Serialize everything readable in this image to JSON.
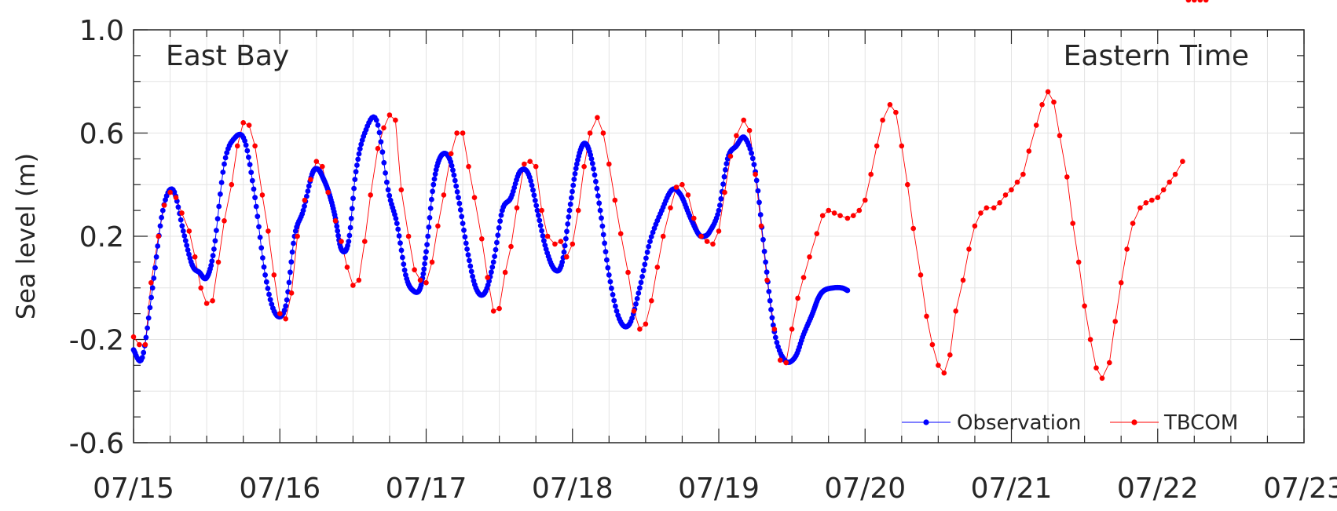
{
  "chart_data": {
    "type": "line",
    "title": "",
    "xlabel": "",
    "ylabel": "Sea level (m)",
    "ylim": [
      -0.6,
      1.0
    ],
    "xlim": [
      "07/15",
      "07/23"
    ],
    "x_ticks": [
      "07/15",
      "07/16",
      "07/17",
      "07/18",
      "07/19",
      "07/20",
      "07/21",
      "07/22",
      "07/23"
    ],
    "y_ticks": [
      "-0.6",
      "-0.2",
      "0.2",
      "0.6",
      "1.0"
    ],
    "grid": true,
    "legend_position": "bottom-right",
    "annotations": {
      "top_left": "East Bay",
      "top_right": "Eastern Time"
    },
    "colors": {
      "Observation": "#0000ff",
      "TBCOM": "#ff0000"
    },
    "series": [
      {
        "name": "Observation",
        "x_dates_days": [
          0.0,
          0.06,
          0.13,
          0.2,
          0.27,
          0.34,
          0.4,
          0.45,
          0.5,
          0.55,
          0.62,
          0.69,
          0.76,
          0.83,
          0.9,
          0.97,
          1.04,
          1.1,
          1.16,
          1.22,
          1.26,
          1.3,
          1.34,
          1.38,
          1.42,
          1.47,
          1.52,
          1.58,
          1.66,
          1.74,
          1.8,
          1.86,
          1.91,
          1.96,
          2.0,
          2.05,
          2.1,
          2.16,
          2.22,
          2.28,
          2.34,
          2.4,
          2.46,
          2.52,
          2.58,
          2.64,
          2.7,
          2.76,
          2.82,
          2.88,
          2.93,
          2.98,
          3.03,
          3.08,
          3.13,
          3.19,
          3.25,
          3.32,
          3.39,
          3.46,
          3.53,
          3.61,
          3.68,
          3.74,
          3.8,
          3.86,
          3.9,
          3.94,
          4.0,
          4.06,
          4.12,
          4.18,
          4.25,
          4.32,
          4.38,
          4.45,
          4.52,
          4.58,
          4.64,
          4.68,
          4.72,
          4.78,
          4.84,
          4.88
        ],
        "values": [
          -0.24,
          -0.27,
          0.0,
          0.3,
          0.38,
          0.22,
          0.09,
          0.06,
          0.04,
          0.15,
          0.48,
          0.58,
          0.57,
          0.35,
          0.05,
          -0.1,
          -0.07,
          0.2,
          0.3,
          0.44,
          0.46,
          0.42,
          0.36,
          0.27,
          0.15,
          0.18,
          0.45,
          0.6,
          0.65,
          0.38,
          0.25,
          0.05,
          -0.01,
          0.0,
          0.14,
          0.4,
          0.51,
          0.5,
          0.35,
          0.15,
          0.0,
          -0.02,
          0.1,
          0.3,
          0.35,
          0.45,
          0.44,
          0.3,
          0.15,
          0.07,
          0.1,
          0.3,
          0.48,
          0.56,
          0.5,
          0.3,
          0.05,
          -0.12,
          -0.14,
          0.0,
          0.18,
          0.3,
          0.38,
          0.36,
          0.28,
          0.21,
          0.2,
          0.22,
          0.3,
          0.5,
          0.55,
          0.58,
          0.45,
          0.1,
          -0.17,
          -0.28,
          -0.27,
          -0.18,
          -0.1,
          -0.04,
          -0.01,
          0.0,
          0.0,
          -0.01
        ]
      },
      {
        "name": "TBCOM",
        "x_dates_days": [
          0.0,
          0.04,
          0.08,
          0.12,
          0.17,
          0.21,
          0.25,
          0.29,
          0.33,
          0.38,
          0.42,
          0.46,
          0.5,
          0.54,
          0.58,
          0.62,
          0.67,
          0.71,
          0.75,
          0.79,
          0.83,
          0.88,
          0.92,
          0.96,
          1.0,
          1.04,
          1.08,
          1.12,
          1.17,
          1.21,
          1.25,
          1.29,
          1.33,
          1.38,
          1.42,
          1.46,
          1.5,
          1.54,
          1.58,
          1.62,
          1.67,
          1.71,
          1.75,
          1.79,
          1.83,
          1.88,
          1.92,
          1.96,
          2.0,
          2.04,
          2.08,
          2.12,
          2.17,
          2.21,
          2.25,
          2.29,
          2.33,
          2.38,
          2.42,
          2.46,
          2.5,
          2.54,
          2.58,
          2.62,
          2.67,
          2.71,
          2.75,
          2.79,
          2.83,
          2.88,
          2.92,
          2.96,
          3.0,
          3.04,
          3.08,
          3.12,
          3.17,
          3.21,
          3.25,
          3.29,
          3.33,
          3.38,
          3.42,
          3.46,
          3.5,
          3.54,
          3.58,
          3.62,
          3.67,
          3.71,
          3.75,
          3.79,
          3.83,
          3.88,
          3.92,
          3.96,
          4.0,
          4.04,
          4.08,
          4.12,
          4.17,
          4.21,
          4.25,
          4.29,
          4.33,
          4.38,
          4.42,
          4.46,
          4.5,
          4.54,
          4.58,
          4.62,
          4.67,
          4.71,
          4.75,
          4.79,
          4.83,
          4.88,
          4.92,
          4.96,
          5.0,
          5.04,
          5.08,
          5.12,
          5.17,
          5.21,
          5.25,
          5.29,
          5.33,
          5.38,
          5.42,
          5.46,
          5.5,
          5.54,
          5.58,
          5.62,
          5.67,
          5.71,
          5.75,
          5.79,
          5.83,
          5.88,
          5.92,
          5.96,
          6.0,
          6.04,
          6.08,
          6.12,
          6.17,
          6.21,
          6.25,
          6.29,
          6.33,
          6.38,
          6.42,
          6.46,
          6.5,
          6.54,
          6.58,
          6.62,
          6.67,
          6.71,
          6.75,
          6.79,
          6.83,
          6.88,
          6.92,
          6.96,
          7.0,
          7.04,
          7.08,
          7.12,
          7.17,
          7.21,
          7.25,
          7.29,
          7.33
        ],
        "values": [
          -0.19,
          -0.22,
          -0.22,
          0.02,
          0.2,
          0.32,
          0.37,
          0.35,
          0.29,
          0.22,
          0.12,
          0.0,
          -0.06,
          -0.05,
          0.1,
          0.26,
          0.4,
          0.55,
          0.64,
          0.63,
          0.55,
          0.36,
          0.22,
          0.05,
          -0.1,
          -0.12,
          -0.02,
          0.2,
          0.34,
          0.42,
          0.49,
          0.47,
          0.37,
          0.26,
          0.18,
          0.08,
          0.01,
          0.03,
          0.18,
          0.36,
          0.54,
          0.62,
          0.67,
          0.65,
          0.38,
          0.2,
          0.07,
          0.03,
          0.02,
          0.1,
          0.24,
          0.36,
          0.52,
          0.6,
          0.6,
          0.47,
          0.35,
          0.19,
          0.04,
          -0.09,
          -0.08,
          0.06,
          0.16,
          0.31,
          0.48,
          0.49,
          0.47,
          0.3,
          0.2,
          0.17,
          0.18,
          0.12,
          0.17,
          0.3,
          0.47,
          0.6,
          0.66,
          0.6,
          0.48,
          0.34,
          0.21,
          0.06,
          -0.09,
          -0.16,
          -0.14,
          -0.05,
          0.08,
          0.2,
          0.31,
          0.39,
          0.4,
          0.36,
          0.27,
          0.2,
          0.18,
          0.17,
          0.22,
          0.37,
          0.51,
          0.59,
          0.65,
          0.61,
          0.44,
          0.24,
          0.03,
          -0.16,
          -0.28,
          -0.29,
          -0.16,
          -0.04,
          0.04,
          0.12,
          0.21,
          0.28,
          0.3,
          0.29,
          0.28,
          0.27,
          0.28,
          0.3,
          0.34,
          0.44,
          0.55,
          0.65,
          0.71,
          0.68,
          0.55,
          0.4,
          0.23,
          0.05,
          -0.11,
          -0.22,
          -0.3,
          -0.33,
          -0.26,
          -0.09,
          0.03,
          0.15,
          0.24,
          0.29,
          0.31,
          0.31,
          0.33,
          0.36,
          0.38,
          0.41,
          0.44,
          0.53,
          0.63,
          0.71,
          0.76,
          0.72,
          0.59,
          0.43,
          0.25,
          0.1,
          -0.07,
          -0.2,
          -0.31,
          -0.35,
          -0.29,
          -0.13,
          0.02,
          0.15,
          0.25,
          0.31,
          0.33,
          0.34,
          0.35,
          0.38,
          0.41,
          0.44,
          0.49
        ]
      }
    ]
  }
}
